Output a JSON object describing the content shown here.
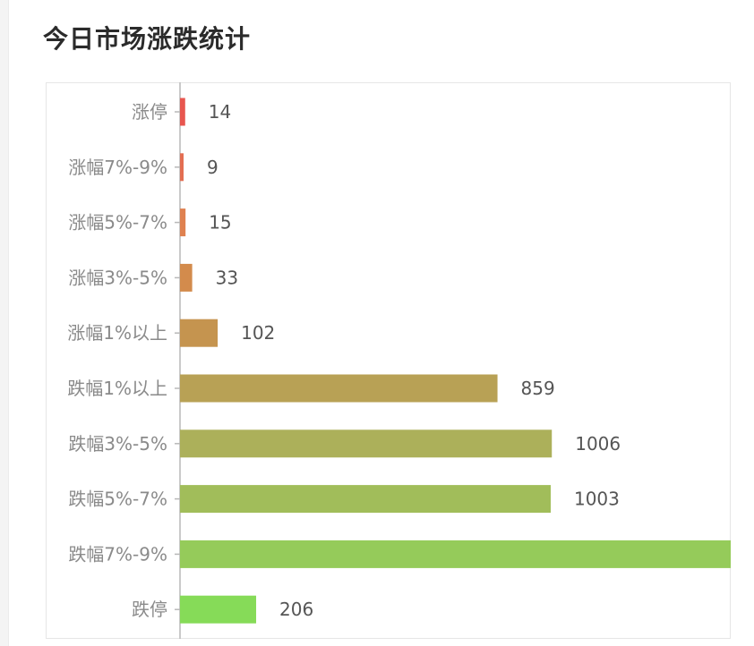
{
  "chart_data": {
    "type": "bar",
    "orientation": "horizontal",
    "title": "今日市场涨跌统计",
    "categories": [
      "涨停",
      "涨幅7%-9%",
      "涨幅5%-7%",
      "涨幅3%-5%",
      "涨幅1%以上",
      "跌幅1%以上",
      "跌幅3%-5%",
      "跌幅5%-7%",
      "跌幅7%-9%",
      "跌停"
    ],
    "values": [
      14,
      9,
      15,
      33,
      102,
      859,
      1006,
      1003,
      1490,
      206
    ],
    "value_labels": [
      "14",
      "9",
      "15",
      "33",
      "102",
      "859",
      "1006",
      "1003",
      "",
      "206"
    ],
    "colors": [
      "#e8564f",
      "#e36e52",
      "#df8150",
      "#d38b4c",
      "#c5944f",
      "#b8a155",
      "#acb05a",
      "#a1bd5a",
      "#95cb5a",
      "#86db58"
    ],
    "xlim": [
      0,
      1490
    ],
    "grid": false,
    "legend": "none"
  }
}
